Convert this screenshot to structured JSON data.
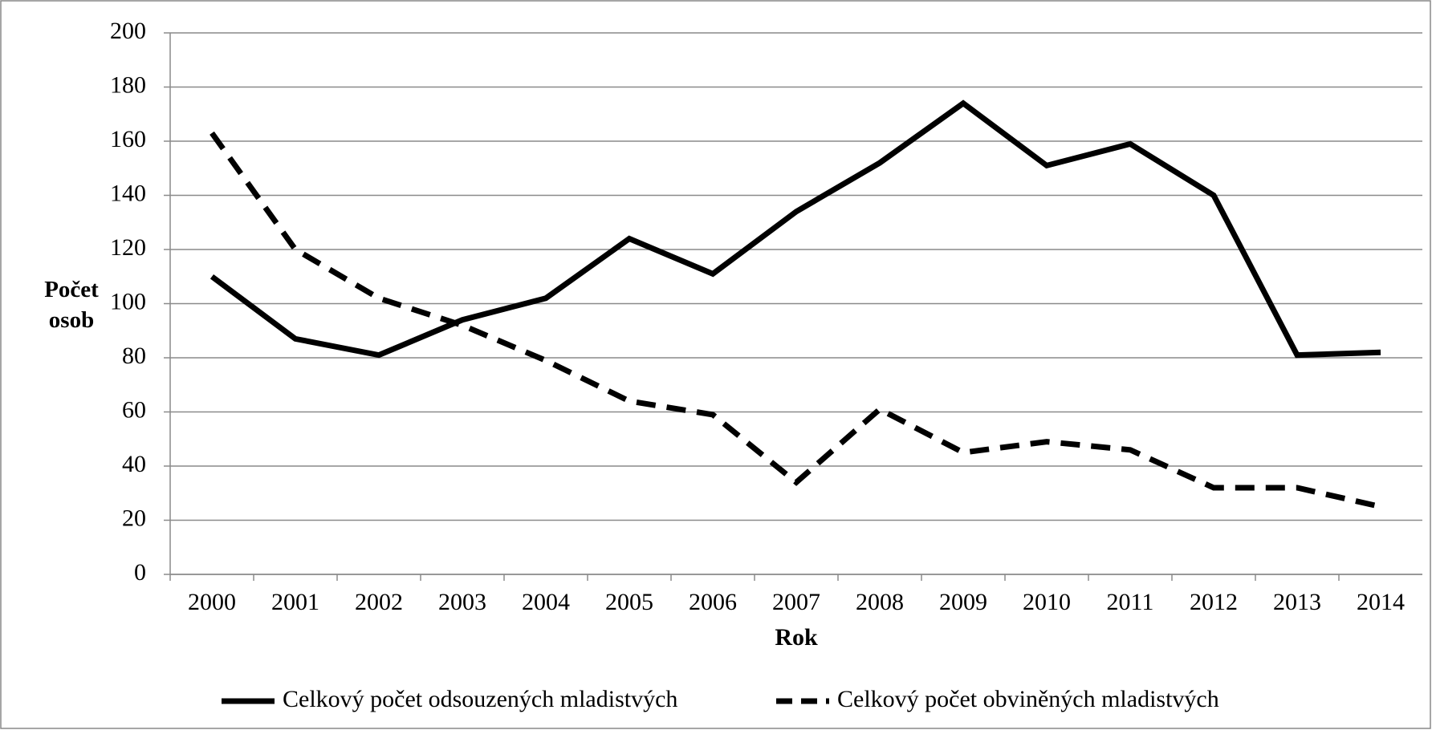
{
  "chart_data": {
    "type": "line",
    "x_label": "Rok",
    "y_label": "Počet osob",
    "categories": [
      "2000",
      "2001",
      "2002",
      "2003",
      "2004",
      "2005",
      "2006",
      "2007",
      "2008",
      "2009",
      "2010",
      "2011",
      "2012",
      "2013",
      "2014"
    ],
    "series": [
      {
        "name": "Celkový počet odsouzených mladistvých",
        "color": "#000000",
        "style": "solid",
        "values": [
          110,
          87,
          81,
          94,
          102,
          124,
          111,
          134,
          152,
          174,
          151,
          159,
          140,
          81,
          82
        ]
      },
      {
        "name": "Celkový počet obviněných mladistvých",
        "color": "#000000",
        "style": "dashed",
        "values": [
          163,
          120,
          102,
          92,
          79,
          64,
          59,
          34,
          61,
          45,
          49,
          46,
          32,
          32,
          25
        ]
      }
    ],
    "ylim": [
      0,
      200
    ],
    "yticks": [
      0,
      20,
      40,
      60,
      80,
      100,
      120,
      140,
      160,
      180,
      200
    ],
    "grid": true,
    "legend": "bottom"
  }
}
